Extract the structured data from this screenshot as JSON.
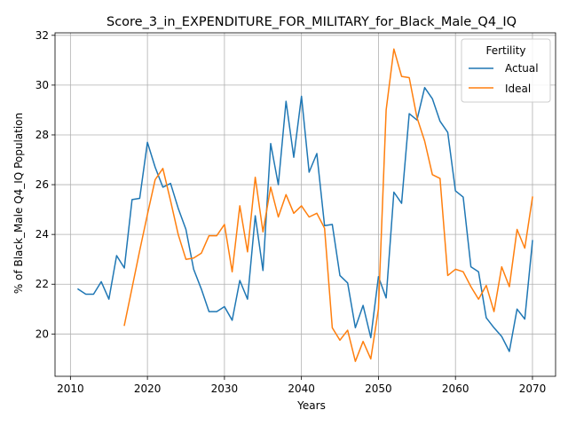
{
  "chart_data": {
    "type": "line",
    "title": "Score_3_in_EXPENDITURE_FOR_MILITARY_for_Black_Male_Q4_IQ",
    "xlabel": "Years",
    "ylabel": "% of Black_Male Q4_IQ Population",
    "xlim": [
      2008,
      2073
    ],
    "ylim": [
      18.3,
      32.1
    ],
    "xticks": [
      2010,
      2020,
      2030,
      2040,
      2050,
      2060,
      2070
    ],
    "yticks": [
      20,
      22,
      24,
      26,
      28,
      30,
      32
    ],
    "grid": true,
    "legend": {
      "title": "Fertility",
      "placement": "top-right"
    },
    "series": [
      {
        "name": "Actual",
        "color": "#1f77b4",
        "x": [
          2011,
          2012,
          2013,
          2014,
          2015,
          2016,
          2017,
          2018,
          2019,
          2020,
          2021,
          2022,
          2023,
          2024,
          2025,
          2026,
          2027,
          2028,
          2029,
          2030,
          2031,
          2032,
          2033,
          2034,
          2035,
          2036,
          2037,
          2038,
          2039,
          2040,
          2041,
          2042,
          2043,
          2044,
          2045,
          2046,
          2047,
          2048,
          2049,
          2050,
          2051,
          2052,
          2053,
          2054,
          2055,
          2056,
          2057,
          2058,
          2059,
          2060,
          2061,
          2062,
          2063,
          2064,
          2065,
          2066,
          2067,
          2068,
          2069,
          2070
        ],
        "values": [
          21.8,
          21.6,
          21.6,
          22.1,
          21.4,
          23.15,
          22.65,
          25.4,
          25.45,
          27.7,
          26.7,
          25.9,
          26.05,
          25.05,
          24.2,
          22.6,
          21.8,
          20.9,
          20.9,
          21.1,
          20.55,
          22.15,
          21.4,
          24.75,
          22.55,
          27.65,
          26.0,
          29.35,
          27.1,
          29.55,
          26.5,
          27.25,
          24.35,
          24.4,
          22.35,
          22.05,
          20.25,
          21.15,
          19.85,
          22.3,
          21.45,
          25.7,
          25.25,
          28.85,
          28.6,
          29.9,
          29.45,
          28.55,
          28.1,
          25.75,
          25.5,
          22.7,
          22.5,
          20.65,
          20.25,
          19.9,
          19.3,
          21.0,
          20.6,
          23.75
        ]
      },
      {
        "name": "Ideal",
        "color": "#ff7f0e",
        "x": [
          2017,
          2018,
          2019,
          2020,
          2021,
          2022,
          2023,
          2024,
          2025,
          2026,
          2027,
          2028,
          2029,
          2030,
          2031,
          2032,
          2033,
          2034,
          2035,
          2036,
          2037,
          2038,
          2039,
          2040,
          2041,
          2042,
          2043,
          2044,
          2045,
          2046,
          2047,
          2048,
          2049,
          2050,
          2051,
          2052,
          2053,
          2054,
          2055,
          2056,
          2057,
          2058,
          2059,
          2060,
          2061,
          2062,
          2063,
          2064,
          2065,
          2066,
          2067,
          2068,
          2069,
          2070
        ],
        "values": [
          20.35,
          21.85,
          23.35,
          24.8,
          26.2,
          26.65,
          25.35,
          24.0,
          23.0,
          23.05,
          23.25,
          23.95,
          23.95,
          24.4,
          22.5,
          25.15,
          23.3,
          26.3,
          24.1,
          25.9,
          24.7,
          25.6,
          24.85,
          25.15,
          24.7,
          24.85,
          24.25,
          20.25,
          19.75,
          20.15,
          18.9,
          19.7,
          19.0,
          21.0,
          29.0,
          31.45,
          30.35,
          30.3,
          28.7,
          27.75,
          26.4,
          26.25,
          22.35,
          22.6,
          22.5,
          21.9,
          21.4,
          21.95,
          20.9,
          22.7,
          21.9,
          24.2,
          23.45,
          25.5
        ]
      }
    ]
  }
}
